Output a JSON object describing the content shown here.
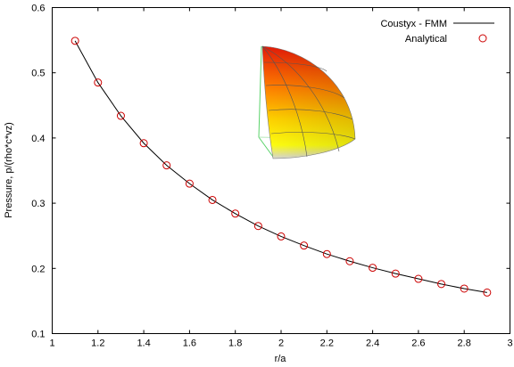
{
  "chart_data": {
    "type": "line",
    "xlabel": "r/a",
    "ylabel": "Pressure, p/(rho*c*vz)",
    "xlim": [
      1,
      3
    ],
    "ylim": [
      0.1,
      0.6
    ],
    "xticks": [
      1,
      1.2,
      1.4,
      1.6,
      1.8,
      2,
      2.2,
      2.4,
      2.6,
      2.8,
      3
    ],
    "xtick_labels": [
      "1",
      "1.2",
      "1.4",
      "1.6",
      "1.8",
      "2",
      "2.2",
      "2.4",
      "2.6",
      "2.8",
      "3"
    ],
    "yticks": [
      0.1,
      0.2,
      0.3,
      0.4,
      0.5,
      0.6
    ],
    "ytick_labels": [
      "0.1",
      "0.2",
      "0.3",
      "0.4",
      "0.5",
      "0.6"
    ],
    "grid": false,
    "legend_position": "top-right",
    "series": [
      {
        "name": "Coustyx - FMM",
        "style": "line",
        "color": "#000000",
        "x": [
          1.1,
          1.2,
          1.3,
          1.4,
          1.5,
          1.6,
          1.7,
          1.8,
          1.9,
          2.0,
          2.1,
          2.2,
          2.3,
          2.4,
          2.5,
          2.6,
          2.7,
          2.8,
          2.9
        ],
        "y": [
          0.549,
          0.485,
          0.434,
          0.392,
          0.358,
          0.33,
          0.305,
          0.284,
          0.265,
          0.249,
          0.235,
          0.222,
          0.211,
          0.201,
          0.192,
          0.184,
          0.176,
          0.169,
          0.163
        ]
      },
      {
        "name": "Analytical",
        "style": "markers",
        "marker": "open-circle",
        "color": "#cc0000",
        "x": [
          1.1,
          1.2,
          1.3,
          1.4,
          1.5,
          1.6,
          1.7,
          1.8,
          1.9,
          2.0,
          2.1,
          2.2,
          2.3,
          2.4,
          2.5,
          2.6,
          2.7,
          2.8,
          2.9
        ],
        "y": [
          0.549,
          0.485,
          0.434,
          0.392,
          0.358,
          0.33,
          0.305,
          0.284,
          0.265,
          0.249,
          0.235,
          0.222,
          0.211,
          0.201,
          0.192,
          0.184,
          0.176,
          0.169,
          0.163
        ]
      }
    ],
    "inset": {
      "description_icon": "sphere-octant-icon",
      "colors": [
        "#e81e0a",
        "#ff8800",
        "#ffdd00",
        "#ffff00",
        "#dcdcdc"
      ]
    }
  }
}
